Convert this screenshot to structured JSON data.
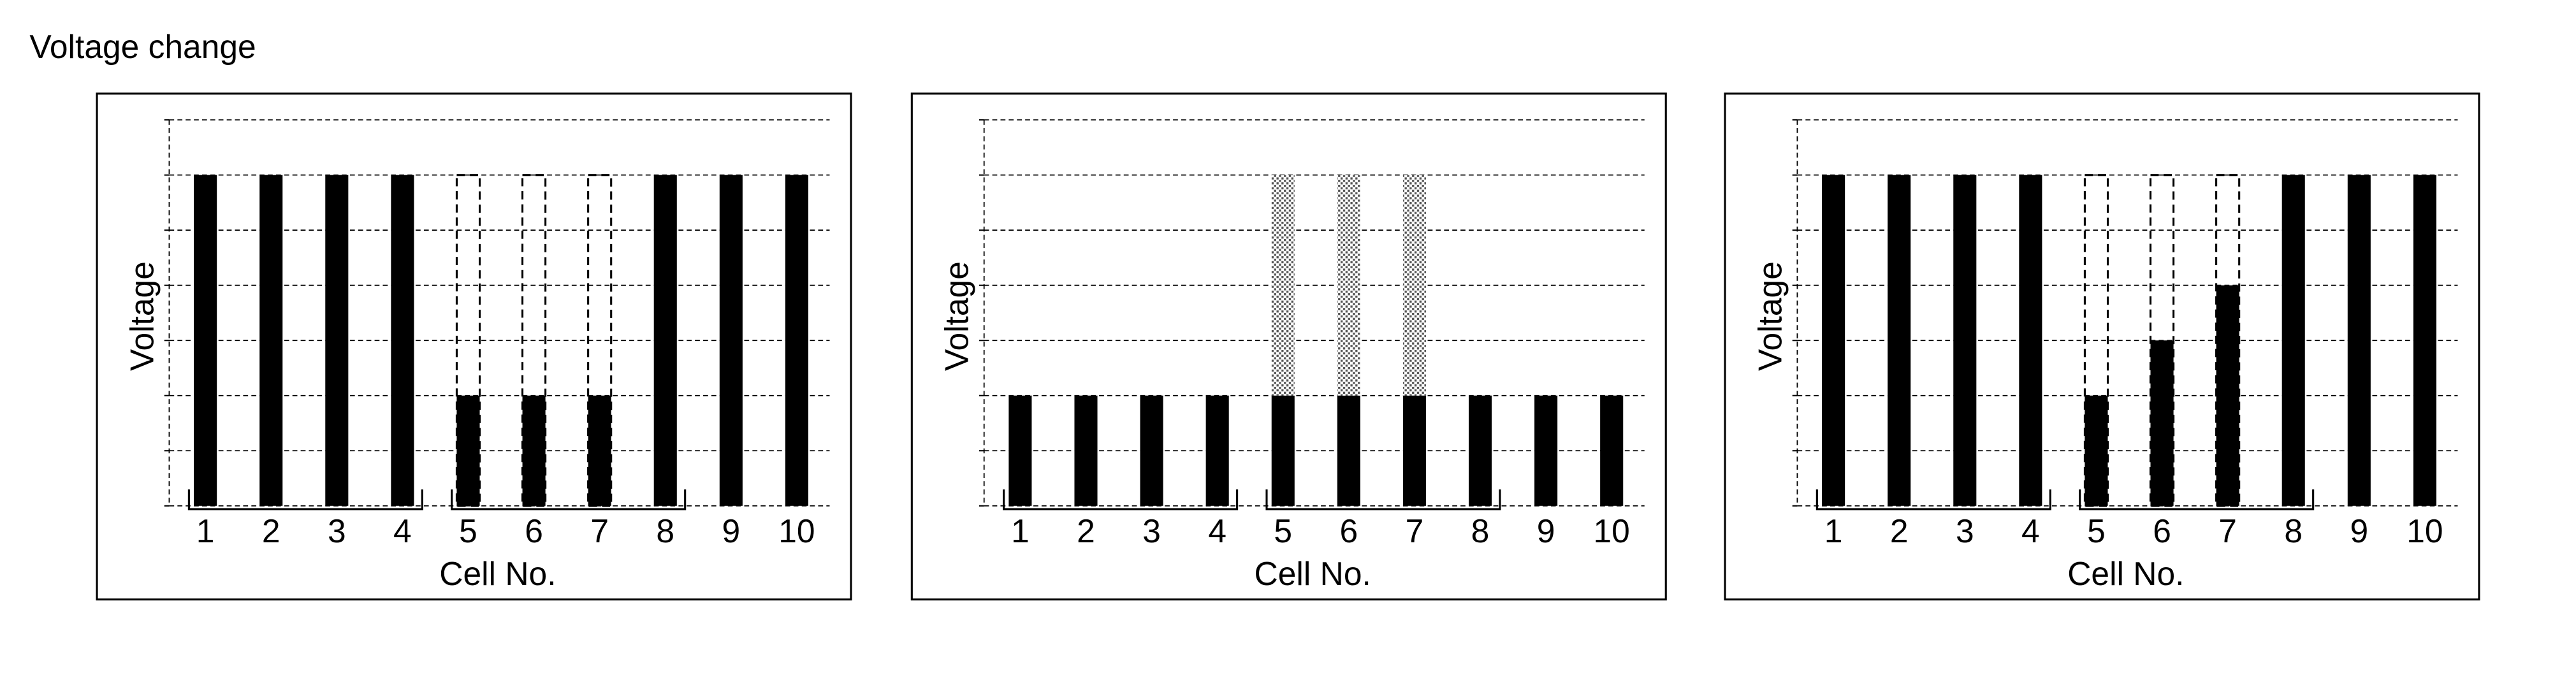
{
  "title": "Voltage change",
  "chart_data": [
    {
      "type": "bar",
      "x_label": "Cell No.",
      "y_label": "Voltage",
      "categories": [
        "1",
        "2",
        "3",
        "4",
        "5",
        "6",
        "7",
        "8",
        "9",
        "10"
      ],
      "ylim": [
        0,
        7
      ],
      "yticks": [
        0,
        1,
        2,
        3,
        4,
        5,
        6,
        7
      ],
      "grid": true,
      "stacked": false,
      "series": [
        {
          "color": "#000000",
          "values": [
            6,
            6,
            6,
            6,
            2,
            2,
            2,
            6,
            6,
            6
          ]
        },
        {
          "style": "dashed-outline",
          "color": "#000000",
          "values": [
            null,
            null,
            null,
            null,
            6,
            6,
            6,
            null,
            null,
            null
          ]
        }
      ]
    },
    {
      "type": "bar",
      "x_label": "Cell No.",
      "y_label": "Voltage",
      "categories": [
        "1",
        "2",
        "3",
        "4",
        "5",
        "6",
        "7",
        "8",
        "9",
        "10"
      ],
      "ylim": [
        0,
        7
      ],
      "yticks": [
        0,
        1,
        2,
        3,
        4,
        5,
        6,
        7
      ],
      "grid": true,
      "stacked": true,
      "series": [
        {
          "color": "#000000",
          "values": [
            2,
            2,
            2,
            2,
            2,
            2,
            2,
            2,
            2,
            2
          ]
        },
        {
          "style": "dotted-fill",
          "color": "#000000",
          "values": [
            null,
            null,
            null,
            null,
            4,
            4,
            4,
            null,
            null,
            null
          ]
        }
      ]
    },
    {
      "type": "bar",
      "x_label": "Cell No.",
      "y_label": "Voltage",
      "categories": [
        "1",
        "2",
        "3",
        "4",
        "5",
        "6",
        "7",
        "8",
        "9",
        "10"
      ],
      "ylim": [
        0,
        7
      ],
      "yticks": [
        0,
        1,
        2,
        3,
        4,
        5,
        6,
        7
      ],
      "grid": true,
      "stacked": false,
      "series": [
        {
          "color": "#000000",
          "values": [
            6,
            6,
            6,
            6,
            2,
            3,
            4,
            6,
            6,
            6
          ]
        },
        {
          "style": "dashed-outline",
          "color": "#000000",
          "values": [
            null,
            null,
            null,
            null,
            6,
            6,
            6,
            null,
            null,
            null
          ]
        }
      ]
    }
  ]
}
